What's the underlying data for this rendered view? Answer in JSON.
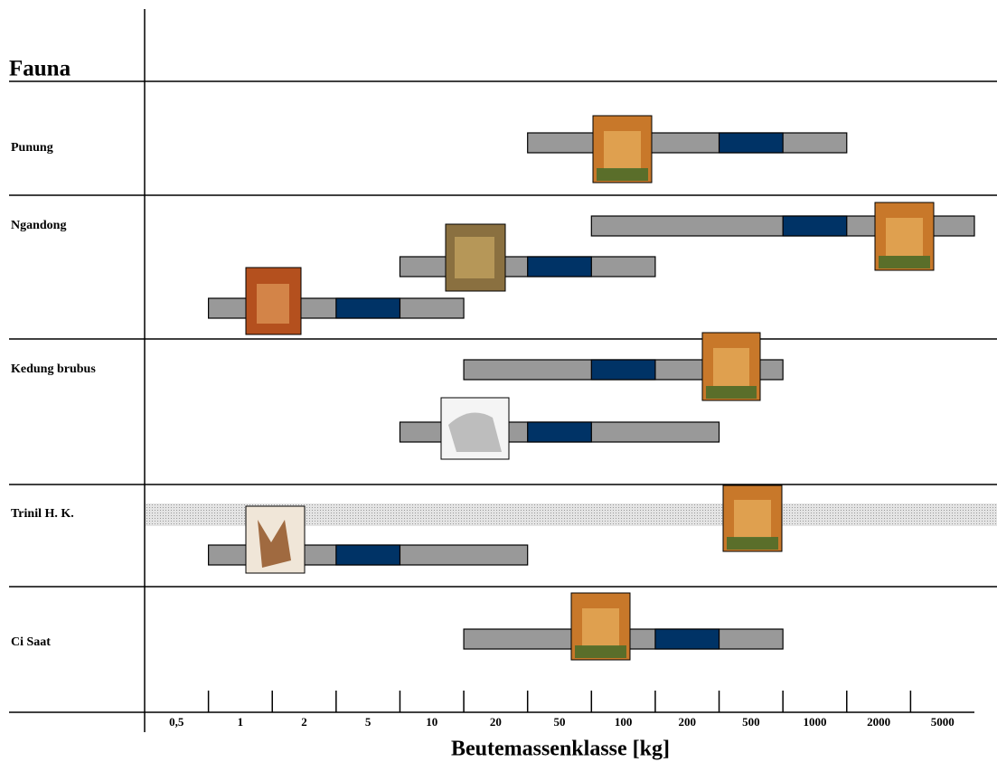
{
  "chart_data": {
    "type": "range-bar",
    "header": "Fauna",
    "xlabel": "Beutemassenklasse [kg]",
    "categories": [
      "0,5",
      "1",
      "2",
      "5",
      "10",
      "20",
      "50",
      "100",
      "200",
      "500",
      "1000",
      "2000",
      "5000"
    ],
    "xlim": [
      0,
      13
    ],
    "color": "#999999",
    "core_color": "#003366",
    "groups": [
      {
        "name": "Punung",
        "bars": [
          {
            "range": [
              6,
              11
            ],
            "core": [
              9,
              10
            ]
          }
        ]
      },
      {
        "name": "Ngandong",
        "bars": [
          {
            "range": [
              7,
              13
            ],
            "core": [
              10,
              11
            ]
          },
          {
            "range": [
              4,
              8
            ],
            "core": [
              6,
              7
            ]
          },
          {
            "range": [
              1,
              5
            ],
            "core": [
              3,
              4
            ]
          }
        ]
      },
      {
        "name": "Kedung brubus",
        "bars": [
          {
            "range": [
              5,
              10
            ],
            "core": [
              7,
              8
            ]
          },
          {
            "range": [
              4,
              9
            ],
            "core": [
              6,
              7
            ]
          }
        ]
      },
      {
        "name": "Trinil H. K.",
        "bars": [
          {
            "range": [
              1,
              6
            ],
            "core": [
              3,
              4
            ]
          }
        ]
      },
      {
        "name": "Ci Saat",
        "bars": [
          {
            "range": [
              5,
              10
            ],
            "core": [
              8,
              9
            ]
          }
        ]
      }
    ]
  }
}
